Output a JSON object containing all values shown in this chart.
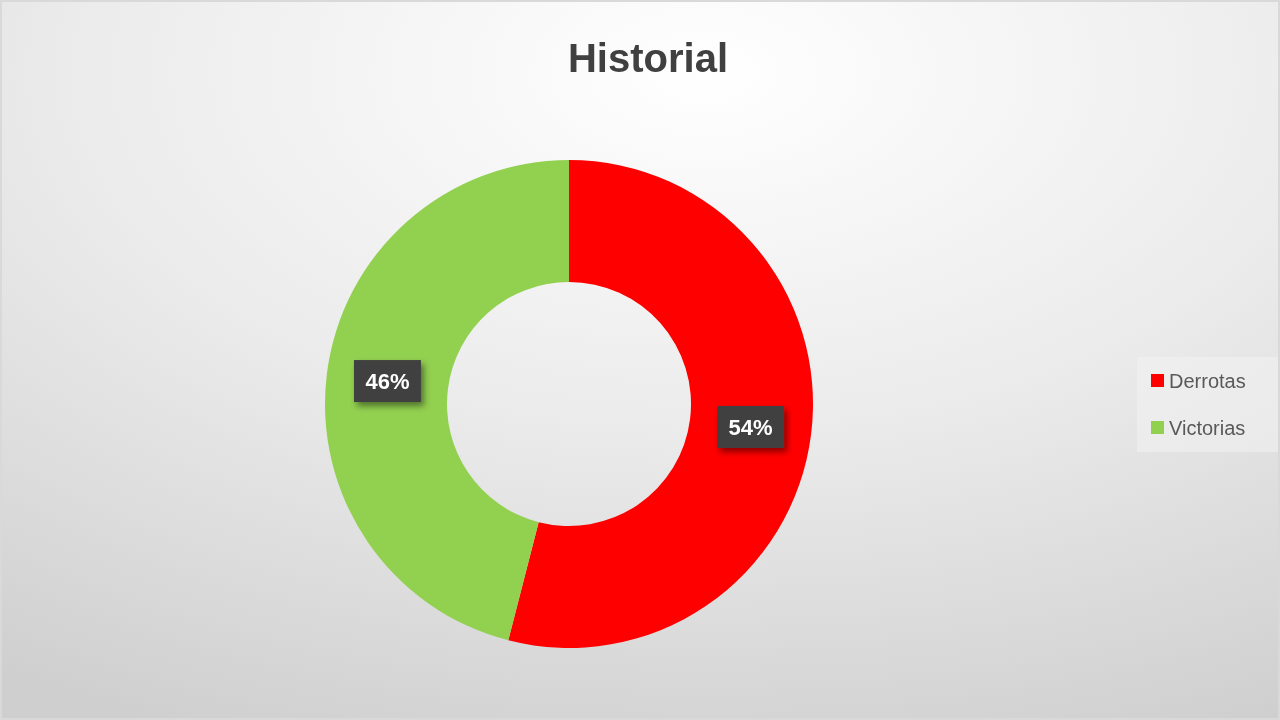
{
  "chart_data": {
    "type": "donut",
    "title": "Historial",
    "categories": [
      "Derrotas",
      "Victorias"
    ],
    "values": [
      54,
      46
    ],
    "colors": [
      "#ff0000",
      "#92d050"
    ],
    "value_labels": [
      "54%",
      "46%"
    ],
    "legend": "right"
  }
}
